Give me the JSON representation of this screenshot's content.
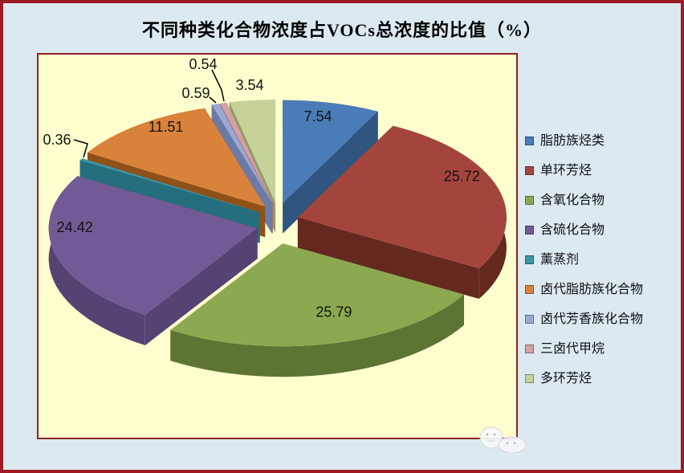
{
  "title": "不同种类化合物浓度占VOCs总浓度的比值（%）",
  "colors": {
    "page_background": "#DCE9F1",
    "page_border": "#9E1B23",
    "plot_background": "#FEFECF",
    "plot_border": "#8B2423",
    "label_text": "#141414",
    "leader_line": "#000000"
  },
  "chart_data": {
    "type": "pie",
    "style": "3d-exploded",
    "title": "不同种类化合物浓度占VOCs总浓度的比值（%）",
    "unit": "%",
    "start_angle_deg": 0,
    "direction": "clockwise",
    "legend_position": "right",
    "labels_shown_as": "values",
    "slices": [
      {
        "label": "脂肪族烃类",
        "value": 7.54,
        "color": "#4A7CB8",
        "side_color": "#2F5580"
      },
      {
        "label": "单环芳烃",
        "value": 25.72,
        "color": "#A4453D",
        "side_color": "#64281F"
      },
      {
        "label": "含氧化合物",
        "value": 25.79,
        "color": "#8CA951",
        "side_color": "#5E7433"
      },
      {
        "label": "含硫化合物",
        "value": 24.42,
        "color": "#715A95",
        "side_color": "#554374"
      },
      {
        "label": "薰蒸剂",
        "value": 0.36,
        "color": "#3D95A5",
        "side_color": "#246E7D"
      },
      {
        "label": "卤代脂肪族化合物",
        "value": 11.51,
        "color": "#D8823C",
        "side_color": "#8F5118"
      },
      {
        "label": "卤代芳香族化合物",
        "value": 0.59,
        "color": "#9AA8D2",
        "side_color": "#6C7BA6"
      },
      {
        "label": "三卤代甲烷",
        "value": 0.54,
        "color": "#D5A0A6",
        "side_color": "#A56F74"
      },
      {
        "label": "多环芳烃",
        "value": 3.54,
        "color": "#C7D29B",
        "side_color": "#909D66"
      }
    ]
  }
}
